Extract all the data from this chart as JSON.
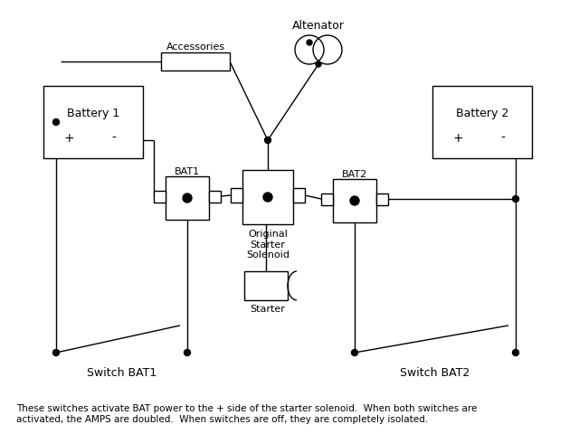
{
  "bg_color": "#ffffff",
  "line_color": "#000000",
  "caption": "These switches activate BAT power to the + side of the starter solenoid.  When both switches are\nactivated, the AMPS are doubled.  When switches are off, they are completely isolated.",
  "battery1_label": "Battery 1",
  "battery2_label": "Battery 2",
  "bat1_label": "BAT1",
  "bat2_label": "BAT2",
  "accessories_label": "Accessories",
  "alternator_label": "Altenator",
  "solenoid_label": "Original\nStarter\nSolenoid",
  "starter_label": "Starter",
  "switch_bat1_label": "Switch BAT1",
  "switch_bat2_label": "Switch BAT2",
  "plus_label": "+",
  "minus_label": "-"
}
